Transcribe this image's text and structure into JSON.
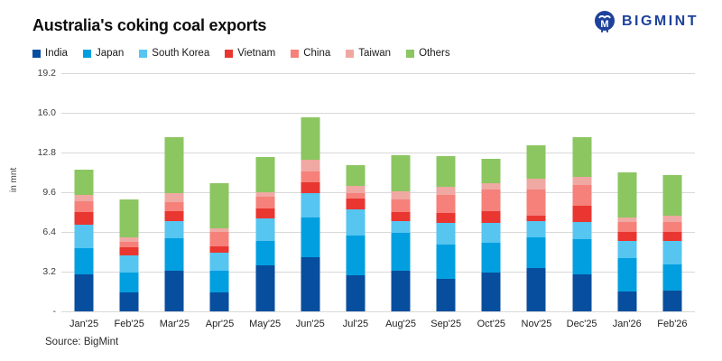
{
  "header": {
    "title": "Australia's coking coal exports",
    "logo_text": "BIGMINT",
    "logo_color": "#1e429b"
  },
  "source": "Source: BigMint",
  "chart_data": {
    "type": "bar",
    "subtype": "stacked-vertical",
    "title": "Australia's coking coal exports",
    "ylabel": "in mnt",
    "xlabel": "",
    "ymax": 19.2,
    "ylim": [
      0,
      19.2
    ],
    "yticks": [
      "19.2",
      "16.0",
      "12.8",
      "9.6",
      "6.4",
      "3.2",
      "-"
    ],
    "grid": true,
    "gridline_color": "#d9d9d9",
    "legend_position": "top-left",
    "categories": [
      "Jan'25",
      "Feb'25",
      "Mar'25",
      "Apr'25",
      "May'25",
      "Jun'25",
      "Jul'25",
      "Aug'25",
      "Sep'25",
      "Oct'25",
      "Nov'25",
      "Dec'25",
      "Jan'26",
      "Feb'26"
    ],
    "series": [
      {
        "name": "India",
        "color": "#084e9e",
        "values": [
          3.0,
          1.5,
          3.3,
          1.5,
          3.7,
          4.4,
          2.9,
          3.3,
          2.6,
          3.1,
          3.5,
          3.0,
          1.6,
          1.7
        ]
      },
      {
        "name": "Japan",
        "color": "#029fe0",
        "values": [
          2.1,
          1.6,
          2.6,
          1.8,
          2.0,
          3.2,
          3.2,
          3.0,
          2.8,
          2.4,
          2.5,
          2.8,
          2.7,
          2.1
        ]
      },
      {
        "name": "South Korea",
        "color": "#56c5f0",
        "values": [
          1.9,
          1.4,
          1.4,
          1.4,
          1.8,
          1.9,
          2.1,
          1.0,
          1.7,
          1.6,
          1.3,
          1.4,
          1.4,
          1.9
        ]
      },
      {
        "name": "Vietnam",
        "color": "#e93631",
        "values": [
          1.0,
          0.7,
          0.8,
          0.5,
          0.8,
          0.9,
          0.9,
          0.7,
          0.8,
          1.0,
          0.4,
          1.3,
          0.7,
          0.7
        ]
      },
      {
        "name": "China",
        "color": "#f5817a",
        "values": [
          0.9,
          0.4,
          0.7,
          1.2,
          0.9,
          0.9,
          0.4,
          1.0,
          1.5,
          1.7,
          2.1,
          1.7,
          0.8,
          0.8
        ]
      },
      {
        "name": "Taiwan",
        "color": "#f0a8a3",
        "values": [
          0.5,
          0.4,
          0.7,
          0.3,
          0.4,
          0.9,
          0.6,
          0.7,
          0.6,
          0.5,
          0.9,
          0.6,
          0.4,
          0.5
        ]
      },
      {
        "name": "Others",
        "color": "#8bc661",
        "values": [
          2.0,
          3.0,
          4.5,
          3.6,
          2.8,
          3.4,
          1.7,
          2.9,
          2.5,
          2.0,
          2.7,
          3.2,
          3.6,
          3.3
        ]
      }
    ],
    "totals": [
      11.4,
      9.0,
      14.0,
      10.3,
      12.4,
      15.6,
      11.8,
      12.6,
      12.5,
      12.3,
      13.4,
      14.0,
      11.2,
      11.0
    ]
  }
}
